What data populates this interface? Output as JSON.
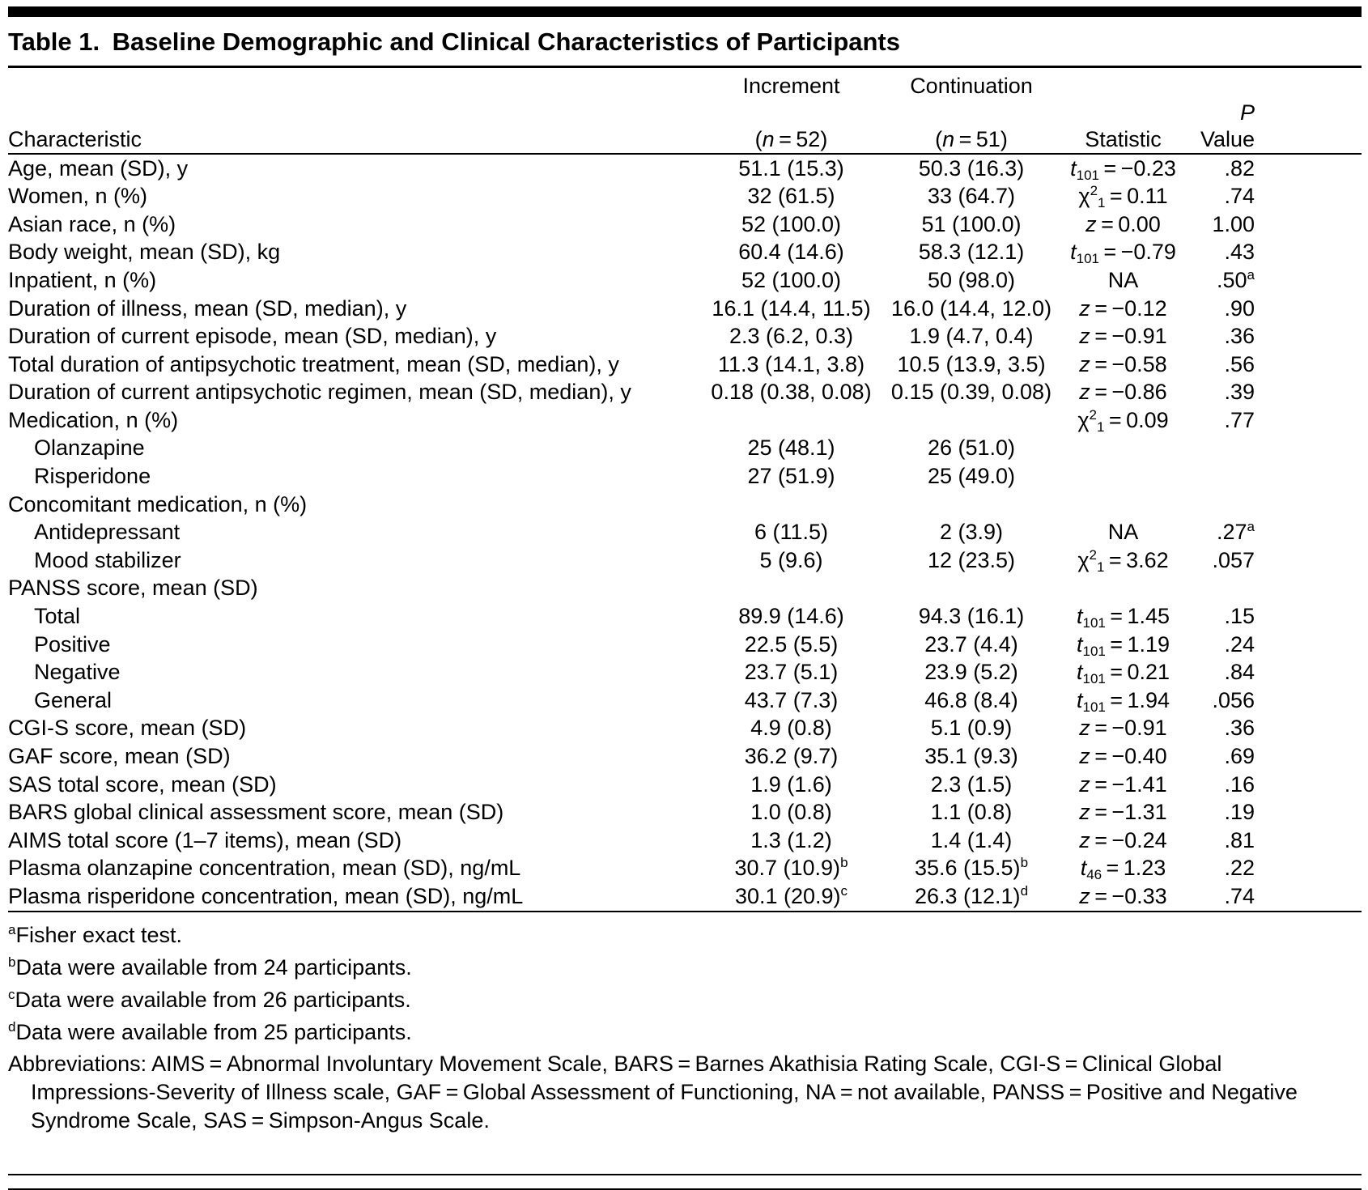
{
  "title": "Table 1. Baseline Demographic and Clinical Characteristics of Participants",
  "header": {
    "characteristic": "Characteristic",
    "increment": "Increment",
    "increment_n": {
      "pre": "(",
      "n": "n",
      "post": " = 52)"
    },
    "continuation": "Continuation",
    "continuation_n": {
      "pre": "(",
      "n": "n",
      "post": " = 51)"
    },
    "statistic": "Statistic",
    "p": "P",
    "p_value": " Value"
  },
  "rows": [
    {
      "label": "Age, mean (SD), y",
      "inc": "51.1 (15.3)",
      "cont": "50.3 (16.3)",
      "stat": {
        "base": "t",
        "italic": true,
        "sub": "101",
        "rest": " = −0.23"
      },
      "p": ".82"
    },
    {
      "label": "Women, n (%)",
      "inc": "32 (61.5)",
      "cont": "33 (64.7)",
      "stat": {
        "base": "χ",
        "sup": "2",
        "sub": "1",
        "rest": " = 0.11"
      },
      "p": ".74"
    },
    {
      "label": "Asian race, n (%)",
      "inc": "52 (100.0)",
      "cont": "51 (100.0)",
      "stat": {
        "base": "z",
        "italic": true,
        "rest": " = 0.00"
      },
      "p": "1.00"
    },
    {
      "label": "Body weight, mean (SD), kg",
      "inc": "60.4 (14.6)",
      "cont": "58.3 (12.1)",
      "stat": {
        "base": "t",
        "italic": true,
        "sub": "101",
        "rest": " = −0.79"
      },
      "p": ".43"
    },
    {
      "label": "Inpatient, n (%)",
      "inc": "52 (100.0)",
      "cont": "50 (98.0)",
      "stat": {
        "rest": "NA"
      },
      "p": {
        "v": ".50",
        "sup": "a"
      }
    },
    {
      "label": "Duration of illness, mean (SD, median), y",
      "inc": "16.1 (14.4, 11.5)",
      "cont": "16.0 (14.4, 12.0)",
      "stat": {
        "base": "z",
        "italic": true,
        "rest": " = −0.12"
      },
      "p": ".90"
    },
    {
      "label": "Duration of current episode, mean (SD, median), y",
      "inc": "2.3 (6.2, 0.3)",
      "cont": "1.9 (4.7, 0.4)",
      "stat": {
        "base": "z",
        "italic": true,
        "rest": " = −0.91"
      },
      "p": ".36"
    },
    {
      "label": "Total duration of antipsychotic treatment, mean (SD, median), y",
      "inc": "11.3 (14.1, 3.8)",
      "cont": "10.5 (13.9, 3.5)",
      "stat": {
        "base": "z",
        "italic": true,
        "rest": " = −0.58"
      },
      "p": ".56"
    },
    {
      "label": "Duration of current antipsychotic regimen, mean (SD, median), y",
      "inc": "0.18 (0.38, 0.08)",
      "cont": "0.15 (0.39, 0.08)",
      "stat": {
        "base": "z",
        "italic": true,
        "rest": " = −0.86"
      },
      "p": ".39"
    },
    {
      "label": "Medication, n (%)",
      "stat": {
        "base": "χ",
        "sup": "2",
        "sub": "1",
        "rest": " = 0.09"
      },
      "p": ".77"
    },
    {
      "label": "Olanzapine",
      "indent": true,
      "inc": "25 (48.1)",
      "cont": "26 (51.0)"
    },
    {
      "label": "Risperidone",
      "indent": true,
      "inc": "27 (51.9)",
      "cont": "25 (49.0)"
    },
    {
      "label": "Concomitant medication, n (%)"
    },
    {
      "label": "Antidepressant",
      "indent": true,
      "inc": "6 (11.5)",
      "cont": "2 (3.9)",
      "stat": {
        "rest": "NA"
      },
      "p": {
        "v": ".27",
        "sup": "a"
      }
    },
    {
      "label": "Mood stabilizer",
      "indent": true,
      "inc": "5 (9.6)",
      "cont": "12 (23.5)",
      "stat": {
        "base": "χ",
        "sup": "2",
        "sub": "1",
        "rest": " = 3.62"
      },
      "p": ".057"
    },
    {
      "label": "PANSS score, mean (SD)"
    },
    {
      "label": "Total",
      "indent": true,
      "inc": "89.9 (14.6)",
      "cont": "94.3 (16.1)",
      "stat": {
        "base": "t",
        "italic": true,
        "sub": "101",
        "rest": " = 1.45"
      },
      "p": ".15"
    },
    {
      "label": "Positive",
      "indent": true,
      "inc": "22.5 (5.5)",
      "cont": "23.7 (4.4)",
      "stat": {
        "base": "t",
        "italic": true,
        "sub": "101",
        "rest": " = 1.19"
      },
      "p": ".24"
    },
    {
      "label": "Negative",
      "indent": true,
      "inc": "23.7 (5.1)",
      "cont": "23.9 (5.2)",
      "stat": {
        "base": "t",
        "italic": true,
        "sub": "101",
        "rest": " = 0.21"
      },
      "p": ".84"
    },
    {
      "label": "General",
      "indent": true,
      "inc": "43.7 (7.3)",
      "cont": "46.8 (8.4)",
      "stat": {
        "base": "t",
        "italic": true,
        "sub": "101",
        "rest": " = 1.94"
      },
      "p": ".056"
    },
    {
      "label": "CGI-S score, mean (SD)",
      "inc": "4.9 (0.8)",
      "cont": "5.1 (0.9)",
      "stat": {
        "base": "z",
        "italic": true,
        "rest": " = −0.91"
      },
      "p": ".36"
    },
    {
      "label": "GAF score, mean (SD)",
      "inc": "36.2 (9.7)",
      "cont": "35.1 (9.3)",
      "stat": {
        "base": "z",
        "italic": true,
        "rest": " = −0.40"
      },
      "p": ".69"
    },
    {
      "label": "SAS total score, mean (SD)",
      "inc": "1.9 (1.6)",
      "cont": "2.3 (1.5)",
      "stat": {
        "base": "z",
        "italic": true,
        "rest": " = −1.41"
      },
      "p": ".16"
    },
    {
      "label": "BARS global clinical assessment score, mean (SD)",
      "inc": "1.0 (0.8)",
      "cont": "1.1 (0.8)",
      "stat": {
        "base": "z",
        "italic": true,
        "rest": " = −1.31"
      },
      "p": ".19"
    },
    {
      "label": "AIMS total score (1–7 items), mean (SD)",
      "inc": "1.3 (1.2)",
      "cont": "1.4 (1.4)",
      "stat": {
        "base": "z",
        "italic": true,
        "rest": " = −0.24"
      },
      "p": ".81"
    },
    {
      "label": "Plasma olanzapine concentration, mean (SD), ng/mL",
      "inc": {
        "v": "30.7 (10.9)",
        "sup": "b"
      },
      "cont": {
        "v": "35.6 (15.5)",
        "sup": "b"
      },
      "stat": {
        "base": "t",
        "italic": true,
        "sub": "46",
        "rest": " = 1.23"
      },
      "p": ".22"
    },
    {
      "label": "Plasma risperidone concentration, mean (SD), ng/mL",
      "inc": {
        "v": "30.1 (20.9)",
        "sup": "c"
      },
      "cont": {
        "v": "26.3 (12.1)",
        "sup": "d"
      },
      "stat": {
        "base": "z",
        "italic": true,
        "rest": " = −0.33"
      },
      "p": ".74"
    }
  ],
  "footnotes": [
    {
      "marker": "a",
      "text": "Fisher exact test."
    },
    {
      "marker": "b",
      "text": "Data were available from 24 participants."
    },
    {
      "marker": "c",
      "text": "Data were available from 26 participants."
    },
    {
      "marker": "d",
      "text": "Data were available from 25 participants."
    }
  ],
  "abbreviations": "Abbreviations: AIMS = Abnormal Involuntary Movement Scale, BARS = Barnes Akathisia Rating Scale, CGI-S = Clinical Global Impressions-Severity of Illness scale, GAF = Global Assessment of Functioning, NA = not available, PANSS = Positive and Negative Syndrome Scale, SAS = Simpson-Angus Scale."
}
